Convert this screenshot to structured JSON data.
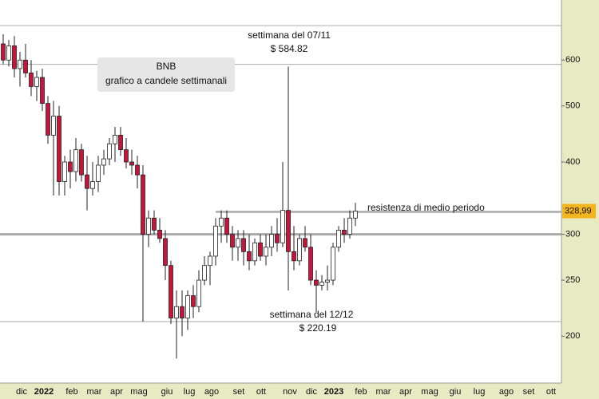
{
  "chart_data": {
    "type": "candlestick",
    "title": "BNB",
    "subtitle": "grafico a candele settimanali",
    "log_scale": true,
    "ylim": [
      166,
      762
    ],
    "yticks": [
      200,
      250,
      300,
      400,
      500,
      600
    ],
    "xlabels": [
      "dic",
      "2022",
      "feb",
      "mar",
      "apr",
      "mag",
      "giu",
      "lug",
      "ago",
      "set",
      "ott",
      "nov",
      "dic",
      "2023",
      "feb",
      "mar",
      "apr",
      "mag",
      "giu",
      "lug",
      "ago",
      "set",
      "ott"
    ],
    "up_color": "#ffffff",
    "down_color": "#c8133a",
    "open": [
      640,
      600,
      635,
      580,
      600,
      570,
      540,
      560,
      505,
      445,
      480,
      370,
      400,
      385,
      420,
      380,
      360,
      370,
      395,
      405,
      430,
      445,
      420,
      400,
      395,
      380,
      300,
      320,
      305,
      295,
      265,
      215,
      225,
      215,
      235,
      225,
      250,
      265,
      275,
      310,
      320,
      300,
      285,
      295,
      280,
      270,
      290,
      275,
      285,
      300,
      290,
      330,
      280,
      270,
      295,
      285,
      250,
      245,
      248,
      250,
      285,
      305,
      300,
      320
    ],
    "high": [
      665,
      650,
      660,
      620,
      640,
      600,
      575,
      580,
      520,
      510,
      500,
      410,
      420,
      440,
      430,
      410,
      400,
      410,
      420,
      440,
      460,
      460,
      440,
      420,
      410,
      395,
      330,
      330,
      320,
      305,
      270,
      240,
      240,
      240,
      245,
      260,
      275,
      280,
      320,
      330,
      330,
      310,
      305,
      305,
      300,
      295,
      300,
      300,
      310,
      320,
      400,
      584.82,
      310,
      300,
      310,
      300,
      260,
      255,
      265,
      290,
      310,
      320,
      330,
      340
    ],
    "low": [
      590,
      585,
      560,
      540,
      560,
      520,
      510,
      490,
      430,
      350,
      350,
      350,
      360,
      370,
      370,
      330,
      350,
      355,
      380,
      395,
      400,
      410,
      390,
      380,
      360,
      212,
      285,
      300,
      290,
      250,
      210,
      183,
      200,
      205,
      215,
      220,
      245,
      245,
      265,
      290,
      290,
      270,
      270,
      265,
      260,
      265,
      270,
      265,
      275,
      280,
      285,
      240,
      260,
      265,
      280,
      245,
      220.19,
      240,
      240,
      245,
      280,
      290,
      295,
      310
    ],
    "close": [
      600,
      635,
      580,
      600,
      570,
      540,
      560,
      505,
      445,
      480,
      370,
      400,
      385,
      420,
      380,
      360,
      370,
      395,
      405,
      430,
      445,
      420,
      400,
      395,
      380,
      300,
      320,
      305,
      295,
      265,
      215,
      225,
      215,
      235,
      225,
      250,
      265,
      275,
      310,
      320,
      300,
      285,
      295,
      280,
      270,
      290,
      275,
      285,
      300,
      290,
      330,
      280,
      270,
      295,
      285,
      250,
      245,
      248,
      250,
      285,
      305,
      300,
      320,
      328.99
    ],
    "hlines": [
      688,
      590,
      300,
      212
    ],
    "resistance": 328,
    "last_price": {
      "value": 328.99,
      "label": "328,99"
    },
    "last_price_color": "#f2b51d",
    "annotations": {
      "spike_week": "settimana del 07/11",
      "spike_price": "$ 584.82",
      "low_week": "settimana del 12/12",
      "low_price": "$ 220.19",
      "resistance": "resistenza di medio periodo"
    }
  }
}
